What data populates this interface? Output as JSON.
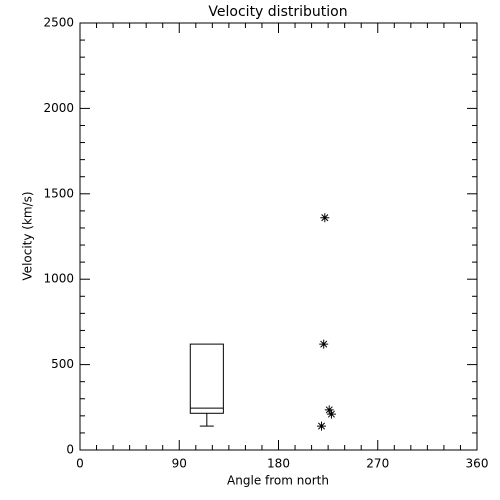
{
  "chart_data": {
    "type": "box",
    "title": "Velocity distribution",
    "x_label": "Angle from north",
    "y_label": "Velocity (km/s)",
    "xlim": [
      0,
      360
    ],
    "xticks": [
      0,
      90,
      180,
      270,
      360
    ],
    "xminorticks": [
      15,
      30,
      45,
      60,
      75,
      105,
      120,
      135,
      150,
      165,
      195,
      210,
      225,
      240,
      255,
      285,
      300,
      315,
      330,
      345
    ],
    "ylim": [
      0,
      2500
    ],
    "yticks": [
      0,
      500,
      1000,
      1500,
      2000,
      2500
    ],
    "yminorticks": [
      100,
      200,
      300,
      400,
      600,
      700,
      800,
      900,
      1100,
      1200,
      1300,
      1400,
      1600,
      1700,
      1800,
      1900,
      2100,
      2200,
      2300,
      2400
    ],
    "color": "#000000",
    "boxes": [
      {
        "x": 115,
        "width": 30,
        "min": 140,
        "q1": 215,
        "median": 245,
        "q3": 620,
        "max": 620
      }
    ],
    "points": {
      "x": [
        219,
        221,
        222,
        226,
        228
      ],
      "values": [
        140,
        620,
        1360,
        235,
        210
      ]
    }
  }
}
